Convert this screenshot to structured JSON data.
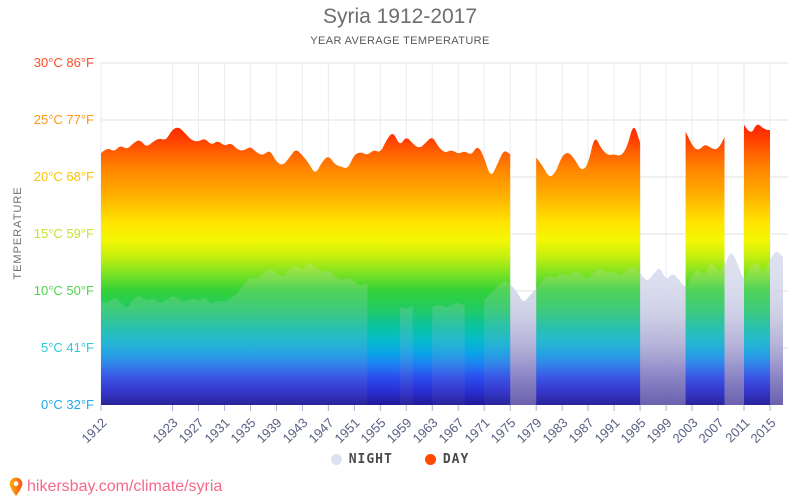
{
  "title": "Syria 1912-2017",
  "subtitle": "YEAR AVERAGE TEMPERATURE",
  "y_axis": {
    "label": "TEMPERATURE",
    "ticks": [
      {
        "label": "30°C 86°F",
        "temp_c": 30,
        "color": "#ff4d29"
      },
      {
        "label": "25°C 77°F",
        "temp_c": 25,
        "color": "#ff9616"
      },
      {
        "label": "20°C 68°F",
        "temp_c": 20,
        "color": "#fcc400"
      },
      {
        "label": "15°C 59°F",
        "temp_c": 15,
        "color": "#c6e22e"
      },
      {
        "label": "10°C 50°F",
        "temp_c": 10,
        "color": "#4ed74e"
      },
      {
        "label": "5°C 41°F",
        "temp_c": 5,
        "color": "#2ec9d8"
      },
      {
        "label": "0°C 32°F",
        "temp_c": 0,
        "color": "#23a6f2"
      }
    ]
  },
  "x_axis": {
    "tick_years": [
      1912,
      1923,
      1927,
      1931,
      1935,
      1939,
      1943,
      1947,
      1951,
      1955,
      1959,
      1963,
      1967,
      1971,
      1975,
      1979,
      1983,
      1987,
      1991,
      1995,
      1999,
      2003,
      2007,
      2011,
      2015
    ]
  },
  "legend": {
    "night": {
      "label": "NIGHT",
      "color": "#dde1ef"
    },
    "day": {
      "label": "DAY",
      "color": "#ff4800"
    }
  },
  "footer": {
    "link": "hikersbay.com/climate/syria",
    "pin_colors": {
      "left": "#ffb300",
      "right": "#f4511e"
    }
  },
  "chart_data": {
    "type": "area",
    "title": "Syria 1912-2017",
    "subtitle": "YEAR AVERAGE TEMPERATURE",
    "xlabel": "",
    "ylabel": "TEMPERATURE",
    "ylim_c": [
      0,
      30
    ],
    "grid": true,
    "legend_position": "bottom",
    "years": {
      "start": 1912,
      "end": 2017,
      "step": 1
    },
    "series": [
      {
        "name": "DAY",
        "style": "temperature-rainbow-gradient-area",
        "values": [
          22.1,
          22.6,
          22.2,
          22.8,
          22.4,
          23.0,
          23.3,
          22.6,
          23.1,
          23.4,
          23.2,
          24.2,
          24.4,
          23.8,
          23.2,
          23.1,
          23.4,
          22.8,
          23.2,
          22.7,
          23.0,
          22.4,
          22.3,
          22.7,
          22.1,
          21.9,
          22.4,
          21.3,
          21.0,
          21.7,
          22.5,
          21.9,
          21.2,
          20.2,
          21.3,
          21.9,
          21.1,
          20.9,
          20.7,
          22.0,
          22.2,
          21.9,
          22.4,
          22.1,
          23.3,
          24.0,
          22.7,
          23.6,
          22.9,
          22.5,
          23.0,
          23.6,
          22.6,
          22.1,
          22.4,
          22.0,
          22.3,
          21.9,
          22.8,
          21.7,
          19.9,
          21.1,
          22.4,
          22.0,
          null,
          null,
          null,
          21.7,
          21.0,
          19.9,
          20.4,
          21.9,
          22.2,
          21.5,
          20.5,
          21.1,
          23.7,
          22.5,
          21.9,
          22.0,
          21.8,
          22.6,
          24.8,
          23.0,
          null,
          null,
          null,
          null,
          null,
          null,
          24.0,
          22.7,
          22.3,
          22.9,
          22.5,
          22.4,
          23.5,
          null,
          null,
          24.6,
          23.6,
          24.8,
          24.2,
          24.1,
          null,
          null
        ]
      },
      {
        "name": "NIGHT",
        "style": "translucent-lavender-area",
        "values": [
          9.2,
          8.8,
          9.5,
          9.0,
          8.4,
          9.3,
          9.6,
          9.1,
          9.4,
          8.9,
          9.2,
          9.6,
          9.3,
          9.0,
          9.4,
          9.1,
          9.5,
          8.8,
          9.2,
          9.0,
          9.4,
          9.8,
          10.6,
          11.2,
          11.0,
          11.5,
          12.0,
          11.6,
          11.2,
          11.9,
          12.3,
          11.8,
          12.6,
          12.1,
          11.6,
          11.9,
          11.3,
          10.9,
          11.2,
          10.8,
          10.4,
          10.7,
          null,
          null,
          null,
          null,
          8.6,
          8.4,
          8.7,
          null,
          null,
          8.6,
          8.9,
          8.5,
          8.8,
          9.0,
          8.7,
          null,
          null,
          9.2,
          9.8,
          10.4,
          10.9,
          10.6,
          10.0,
          8.9,
          9.6,
          10.2,
          11.0,
          11.4,
          11.1,
          11.6,
          11.2,
          11.8,
          11.4,
          11.0,
          11.7,
          12.0,
          11.5,
          11.8,
          11.2,
          11.9,
          12.2,
          11.6,
          10.8,
          11.4,
          12.2,
          10.9,
          11.6,
          11.0,
          10.2,
          11.4,
          12.0,
          11.2,
          12.8,
          11.6,
          12.2,
          13.6,
          12.4,
          10.8,
          12.2,
          12.6,
          11.4,
          12.8,
          13.6,
          13.0
        ]
      }
    ],
    "day_gradient": [
      {
        "t": 0.0,
        "color": "#1f1a96"
      },
      {
        "t": 1.25,
        "color": "#2a2fd4"
      },
      {
        "t": 2.5,
        "color": "#2b50ee"
      },
      {
        "t": 3.5,
        "color": "#1f7df2"
      },
      {
        "t": 4.5,
        "color": "#0aa3e8"
      },
      {
        "t": 5.75,
        "color": "#06bcc9"
      },
      {
        "t": 7.0,
        "color": "#0cc39b"
      },
      {
        "t": 8.25,
        "color": "#1fca67"
      },
      {
        "t": 10.0,
        "color": "#33d139"
      },
      {
        "t": 11.5,
        "color": "#7ae224"
      },
      {
        "t": 13.0,
        "color": "#c4ef0e"
      },
      {
        "t": 14.5,
        "color": "#f4f703"
      },
      {
        "t": 16.0,
        "color": "#ffe400"
      },
      {
        "t": 17.5,
        "color": "#ffc400"
      },
      {
        "t": 19.0,
        "color": "#ffa300"
      },
      {
        "t": 20.5,
        "color": "#ff8a00"
      },
      {
        "t": 22.0,
        "color": "#ff6400"
      },
      {
        "t": 23.5,
        "color": "#ff3a00"
      },
      {
        "t": 25.0,
        "color": "#ff1e00"
      }
    ],
    "night_gradient": [
      {
        "t": 0.0,
        "color": "#5a4fa6"
      },
      {
        "t": 2.5,
        "color": "#7f78bf"
      },
      {
        "t": 5.0,
        "color": "#aaa7d4"
      },
      {
        "t": 8.0,
        "color": "#c9cbe3"
      },
      {
        "t": 10.5,
        "color": "#d6d9ec"
      },
      {
        "t": 13.5,
        "color": "#dcdfee"
      }
    ]
  }
}
